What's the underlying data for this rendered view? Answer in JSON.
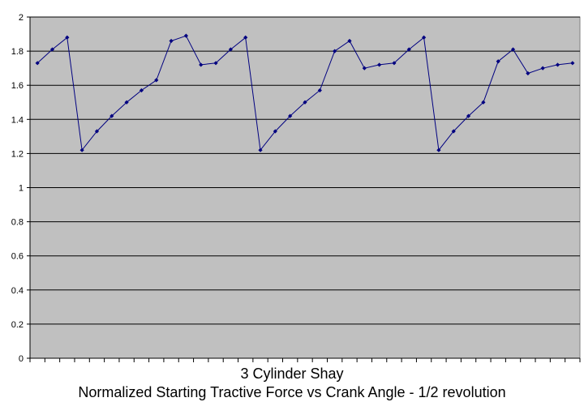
{
  "chart_data": {
    "type": "line",
    "title": "3 Cylinder Shay",
    "subtitle": "Normalized Starting Tractive Force vs Crank Angle - 1/2 revolution",
    "xlabel": "",
    "ylabel": "",
    "ylim": [
      0,
      2
    ],
    "y_ticks": [
      "0",
      "0.2",
      "0.4",
      "0.6",
      "0.8",
      "1",
      "1.2",
      "1.4",
      "1.6",
      "1.8",
      "2"
    ],
    "grid": true,
    "legend": "none",
    "series": [
      {
        "values": [
          1.73,
          1.81,
          1.88,
          1.22,
          1.33,
          1.42,
          1.5,
          1.57,
          1.63,
          1.86,
          1.89,
          1.72,
          1.73,
          1.81,
          1.88,
          1.22,
          1.33,
          1.42,
          1.5,
          1.57,
          1.8,
          1.86,
          1.7,
          1.72,
          1.73,
          1.81,
          1.88,
          1.22,
          1.33,
          1.42,
          1.5,
          1.74,
          1.81,
          1.67,
          1.7,
          1.72,
          1.73
        ]
      }
    ],
    "colors": {
      "plot_background": "#c0c0c0",
      "gridline": "#000000",
      "line": "#000080",
      "marker": "#000080"
    }
  }
}
